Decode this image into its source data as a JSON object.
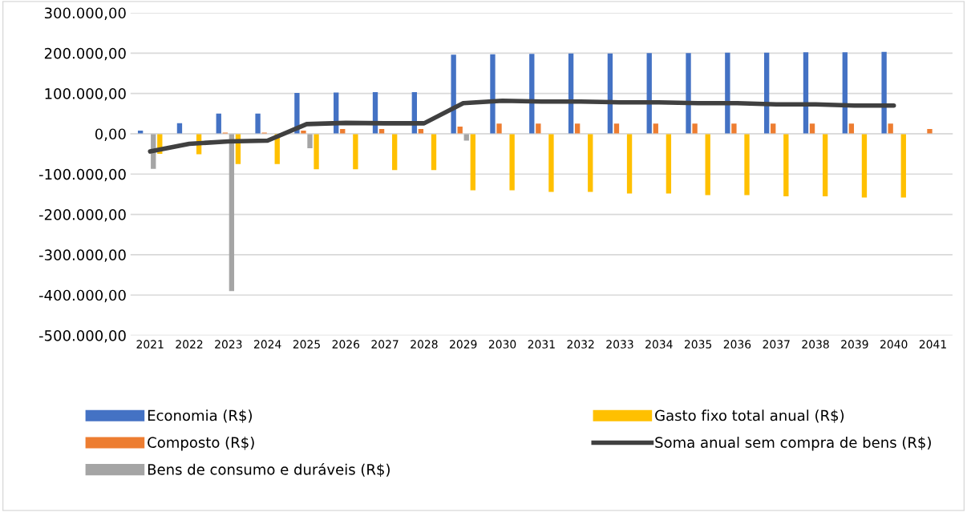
{
  "chart_data": {
    "type": "bar",
    "categories": [
      "2021",
      "2022",
      "2023",
      "2024",
      "2025",
      "2026",
      "2027",
      "2028",
      "2029",
      "2030",
      "2031",
      "2032",
      "2033",
      "2034",
      "2035",
      "2036",
      "2037",
      "2038",
      "2039",
      "2040",
      "2041"
    ],
    "series": [
      {
        "name": "Economia (R$)",
        "color": "#4472c4",
        "values": [
          8000,
          26000,
          50000,
          50000,
          101000,
          102000,
          103000,
          103000,
          196000,
          197000,
          198000,
          199000,
          199000,
          200000,
          200000,
          201000,
          201000,
          202000,
          202000,
          203000,
          null
        ]
      },
      {
        "name": "Composto (R$)",
        "color": "#ed7d31",
        "values": [
          null,
          null,
          3000,
          3000,
          8000,
          12000,
          12000,
          12000,
          18000,
          25000,
          25000,
          25000,
          25000,
          25000,
          25000,
          25000,
          25000,
          25000,
          25000,
          25000,
          12000
        ]
      },
      {
        "name": "Bens de consumo e duráveis (R$)",
        "color": "#a5a5a5",
        "values": [
          -87000,
          null,
          -390000,
          null,
          -36000,
          null,
          null,
          null,
          -17000,
          null,
          null,
          null,
          null,
          null,
          null,
          null,
          null,
          null,
          null,
          null,
          null
        ]
      },
      {
        "name": "Gasto fixo total anual (R$)",
        "color": "#ffc000",
        "values": [
          -50000,
          -51000,
          -75000,
          -75000,
          -88000,
          -88000,
          -90000,
          -90000,
          -140000,
          -140000,
          -144000,
          -144000,
          -148000,
          -148000,
          -152000,
          -152000,
          -155000,
          -155000,
          -158000,
          -158000,
          null
        ]
      },
      {
        "name": "Soma anual sem compra de bens (R$)",
        "type": "line",
        "color": "#404040",
        "values": [
          -44000,
          -25000,
          -19000,
          -17000,
          24000,
          27000,
          26000,
          26000,
          76000,
          82000,
          80000,
          80000,
          78000,
          78000,
          76000,
          76000,
          73000,
          73000,
          70000,
          70000,
          null
        ]
      }
    ],
    "ylim": [
      -500000,
      300000
    ],
    "yticks": [
      {
        "value": -500000,
        "label": "-500.000,00"
      },
      {
        "value": -400000,
        "label": "-400.000,00"
      },
      {
        "value": -300000,
        "label": "-300.000,00"
      },
      {
        "value": -200000,
        "label": "-200.000,00"
      },
      {
        "value": -100000,
        "label": "-100.000,00"
      },
      {
        "value": 0,
        "label": "0,00"
      },
      {
        "value": 100000,
        "label": "100.000,00"
      },
      {
        "value": 200000,
        "label": "200.000,00"
      },
      {
        "value": 300000,
        "label": "300.000,00"
      }
    ],
    "grid": "y",
    "legend": "bottom",
    "line_style": "solid",
    "marker": "none"
  }
}
